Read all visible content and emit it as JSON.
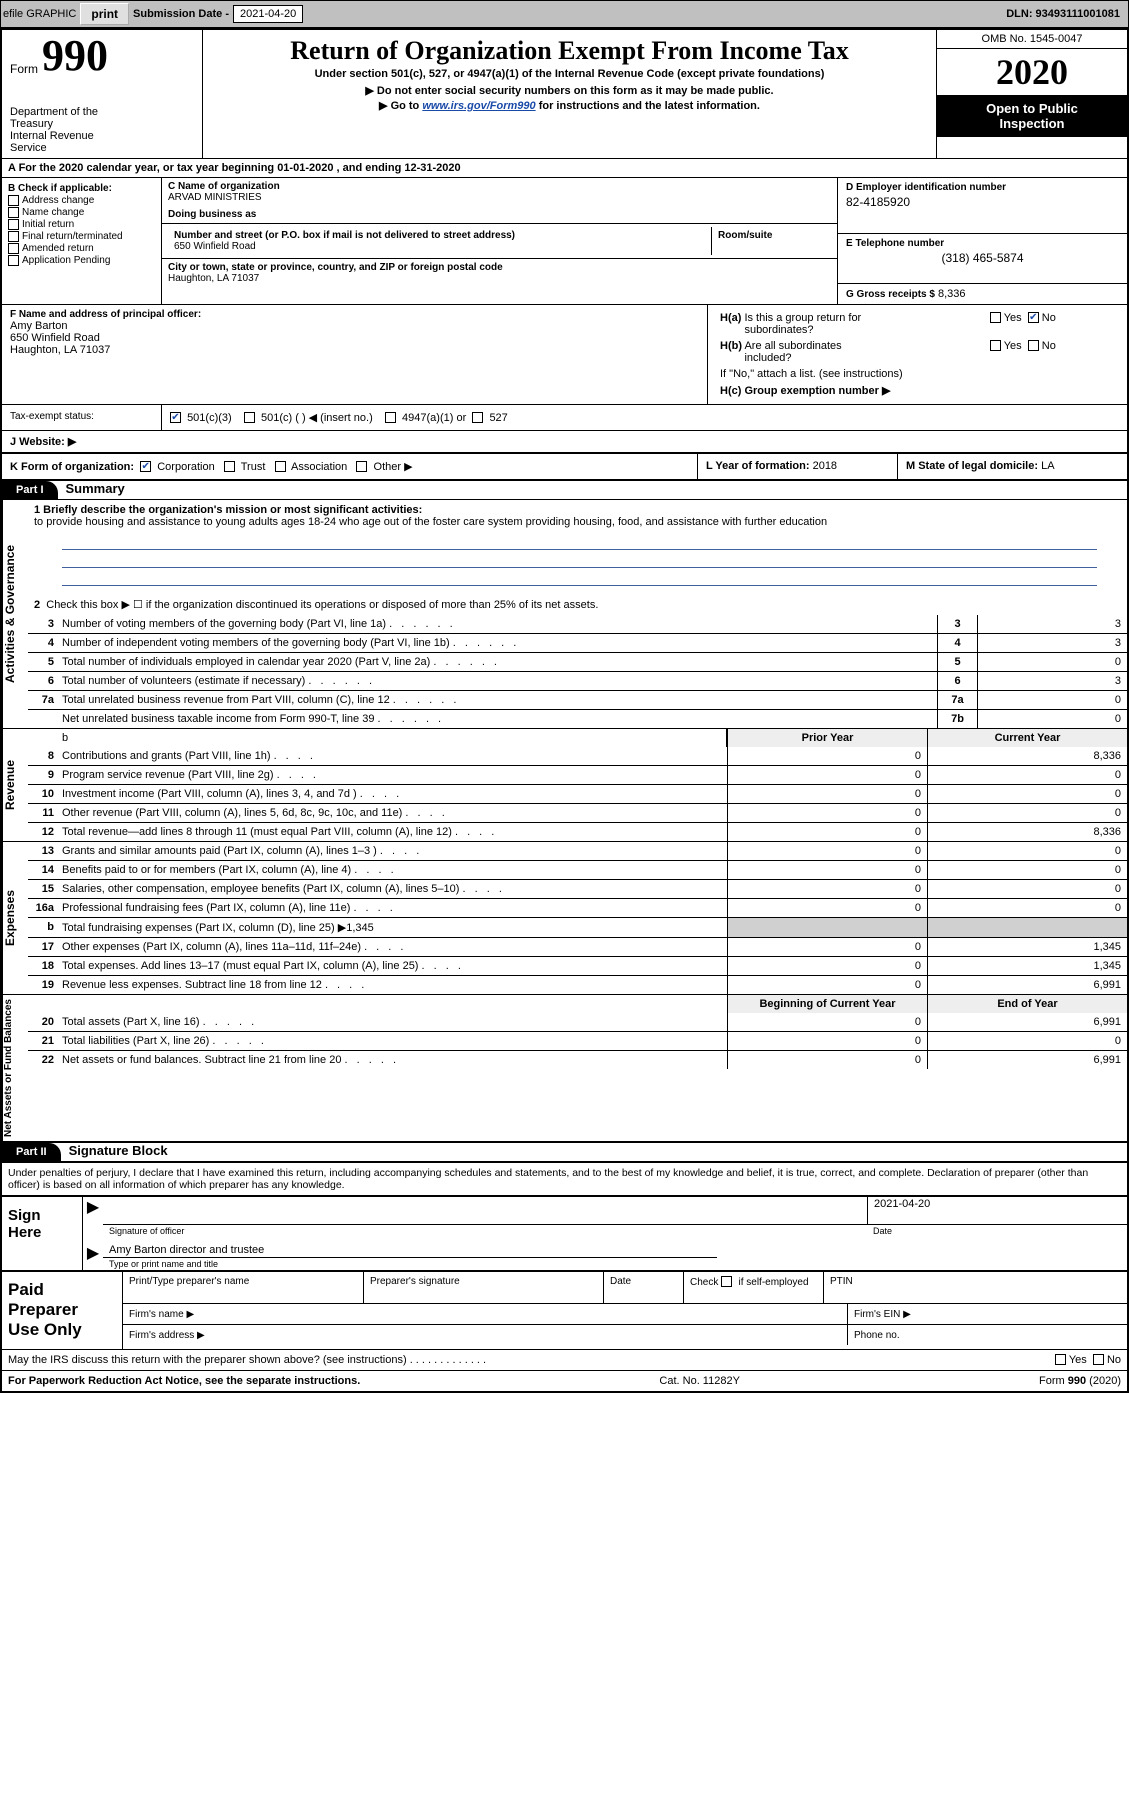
{
  "topbar": {
    "efile": "efile GRAPHIC",
    "print": "print",
    "sub_label": "Submission Date - ",
    "sub_date": "2021-04-20",
    "dln": "DLN: 93493111001081"
  },
  "header": {
    "form_word": "Form",
    "form_num": "990",
    "dept": "Department of the Treasury\nInternal Revenue Service",
    "title": "Return of Organization Exempt From Income Tax",
    "sub": "Under section 501(c), 527, or 4947(a)(1) of the Internal Revenue Code (except private foundations)",
    "note1": "▶ Do not enter social security numbers on this form as it may be made public.",
    "note2_pre": "▶ Go to ",
    "note2_link": "www.irs.gov/Form990",
    "note2_post": " for instructions and the latest information.",
    "omb": "OMB No. 1545-0047",
    "year": "2020",
    "inspect": "Open to Public Inspection"
  },
  "lineA": "A For the 2020 calendar year, or tax year beginning 01-01-2020    , and ending 12-31-2020",
  "colB": {
    "title": "B Check if applicable:",
    "items": [
      "Address change",
      "Name change",
      "Initial return",
      "Final return/terminated",
      "Amended return",
      "Application Pending"
    ]
  },
  "c": {
    "name_lbl": "C Name of organization",
    "name": "ARVAD MINISTRIES",
    "dba_lbl": "Doing business as",
    "dba": "",
    "addr_lbl": "Number and street (or P.O. box if mail is not delivered to street address)",
    "room_lbl": "Room/suite",
    "addr": "650 Winfield Road",
    "city_lbl": "City or town, state or province, country, and ZIP or foreign postal code",
    "city": "Haughton, LA   71037"
  },
  "d": {
    "lbl": "D Employer identification number",
    "val": "82-4185920"
  },
  "e": {
    "lbl": "E Telephone number",
    "val": "(318) 465-5874"
  },
  "g": {
    "lbl": "G Gross receipts $",
    "val": "8,336"
  },
  "f": {
    "lbl": "F  Name and address of principal officer:",
    "name": "Amy Barton",
    "addr1": "650 Winfield Road",
    "addr2": "Haughton, LA   71037"
  },
  "h": {
    "a_lbl": "H(a)  Is this a group return for subordinates?",
    "a_yes": "Yes",
    "a_no": "No",
    "b_lbl": "H(b)  Are all subordinates included?",
    "b_note": "If \"No,\" attach a list. (see instructions)",
    "c_lbl": "H(c)  Group exemption number ▶"
  },
  "i": {
    "lbl": "Tax-exempt status:",
    "o1": "501(c)(3)",
    "o2": "501(c) (   ) ◀ (insert no.)",
    "o3": "4947(a)(1) or",
    "o4": "527"
  },
  "j": {
    "lbl": "J   Website: ▶"
  },
  "k": {
    "lbl": "K Form of organization:",
    "o1": "Corporation",
    "o2": "Trust",
    "o3": "Association",
    "o4": "Other ▶"
  },
  "l": {
    "lbl": "L Year of formation:",
    "val": "2018"
  },
  "m": {
    "lbl": "M State of legal domicile:",
    "val": "LA"
  },
  "part1": {
    "hdr": "Part I",
    "title": "Summary"
  },
  "summary": {
    "l1_lbl": "1  Briefly describe the organization's mission or most significant activities:",
    "l1_text": "to provide housing and assistance to young adults ages 18-24 who age out of the foster care system providing housing, food, and assistance with further education",
    "l2": "Check this box ▶ ☐ if the organization discontinued its operations or disposed of more than 25% of its net assets.",
    "rows_gov": [
      {
        "n": "3",
        "t": "Number of voting members of the governing body (Part VI, line 1a)",
        "box": "3",
        "v": "3"
      },
      {
        "n": "4",
        "t": "Number of independent voting members of the governing body (Part VI, line 1b)",
        "box": "4",
        "v": "3"
      },
      {
        "n": "5",
        "t": "Total number of individuals employed in calendar year 2020 (Part V, line 2a)",
        "box": "5",
        "v": "0"
      },
      {
        "n": "6",
        "t": "Total number of volunteers (estimate if necessary)",
        "box": "6",
        "v": "3"
      },
      {
        "n": "7a",
        "t": "Total unrelated business revenue from Part VIII, column (C), line 12",
        "box": "7a",
        "v": "0"
      },
      {
        "n": "",
        "t": "Net unrelated business taxable income from Form 990-T, line 39",
        "box": "7b",
        "v": "0"
      }
    ],
    "col_prior": "Prior Year",
    "col_curr": "Current Year",
    "rows_rev": [
      {
        "n": "8",
        "t": "Contributions and grants (Part VIII, line 1h)",
        "p": "0",
        "c": "8,336"
      },
      {
        "n": "9",
        "t": "Program service revenue (Part VIII, line 2g)",
        "p": "0",
        "c": "0"
      },
      {
        "n": "10",
        "t": "Investment income (Part VIII, column (A), lines 3, 4, and 7d )",
        "p": "0",
        "c": "0"
      },
      {
        "n": "11",
        "t": "Other revenue (Part VIII, column (A), lines 5, 6d, 8c, 9c, 10c, and 11e)",
        "p": "0",
        "c": "0"
      },
      {
        "n": "12",
        "t": "Total revenue—add lines 8 through 11 (must equal Part VIII, column (A), line 12)",
        "p": "0",
        "c": "8,336"
      }
    ],
    "rows_exp": [
      {
        "n": "13",
        "t": "Grants and similar amounts paid (Part IX, column (A), lines 1–3 )",
        "p": "0",
        "c": "0"
      },
      {
        "n": "14",
        "t": "Benefits paid to or for members (Part IX, column (A), line 4)",
        "p": "0",
        "c": "0"
      },
      {
        "n": "15",
        "t": "Salaries, other compensation, employee benefits (Part IX, column (A), lines 5–10)",
        "p": "0",
        "c": "0"
      },
      {
        "n": "16a",
        "t": "Professional fundraising fees (Part IX, column (A), line 11e)",
        "p": "0",
        "c": "0"
      },
      {
        "n": "b",
        "t": "Total fundraising expenses (Part IX, column (D), line 25) ▶1,345",
        "p": "",
        "c": "",
        "shade": true
      },
      {
        "n": "17",
        "t": "Other expenses (Part IX, column (A), lines 11a–11d, 11f–24e)",
        "p": "0",
        "c": "1,345"
      },
      {
        "n": "18",
        "t": "Total expenses. Add lines 13–17 (must equal Part IX, column (A), line 25)",
        "p": "0",
        "c": "1,345"
      },
      {
        "n": "19",
        "t": "Revenue less expenses. Subtract line 18 from line 12",
        "p": "0",
        "c": "6,991"
      }
    ],
    "col_beg": "Beginning of Current Year",
    "col_end": "End of Year",
    "rows_net": [
      {
        "n": "20",
        "t": "Total assets (Part X, line 16)",
        "p": "0",
        "c": "6,991"
      },
      {
        "n": "21",
        "t": "Total liabilities (Part X, line 26)",
        "p": "0",
        "c": "0"
      },
      {
        "n": "22",
        "t": "Net assets or fund balances. Subtract line 21 from line 20",
        "p": "0",
        "c": "6,991"
      }
    ],
    "tab_gov": "Activities & Governance",
    "tab_rev": "Revenue",
    "tab_exp": "Expenses",
    "tab_net": "Net Assets or Fund Balances"
  },
  "part2": {
    "hdr": "Part II",
    "title": "Signature Block"
  },
  "sig": {
    "decl": "Under penalties of perjury, I declare that I have examined this return, including accompanying schedules and statements, and to the best of my knowledge and belief, it is true, correct, and complete. Declaration of preparer (other than officer) is based on all information of which preparer has any knowledge.",
    "sign_here": "Sign Here",
    "sig_officer": "Signature of officer",
    "date_lbl": "Date",
    "date": "2021-04-20",
    "name": "Amy Barton  director and trustee",
    "name_cap": "Type or print name and title"
  },
  "prep": {
    "title": "Paid Preparer Use Only",
    "c1": "Print/Type preparer's name",
    "c2": "Preparer's signature",
    "c3": "Date",
    "c4a": "Check",
    "c4b": "if self-employed",
    "c5": "PTIN",
    "r2a": "Firm's name   ▶",
    "r2b": "Firm's EIN ▶",
    "r3a": "Firm's address ▶",
    "r3b": "Phone no."
  },
  "may": {
    "text": "May the IRS discuss this return with the preparer shown above? (see instructions)",
    "yes": "Yes",
    "no": "No"
  },
  "footer": {
    "left": "For Paperwork Reduction Act Notice, see the separate instructions.",
    "mid": "Cat. No. 11282Y",
    "right": "Form 990 (2020)"
  },
  "colors": {
    "link": "#1a4aa8",
    "black": "#000000",
    "gray_bg": "#c0c0c0",
    "shade": "#d0d0d0",
    "hdr_gray": "#eeeeee"
  }
}
